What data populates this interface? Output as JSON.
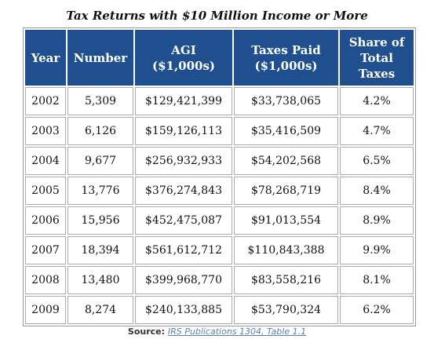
{
  "title": "Tax Returns with $10 Million Income or More",
  "table": {
    "header": [
      [
        "Year"
      ],
      [
        "Number"
      ],
      [
        "AGI",
        "($1,000s)"
      ],
      [
        "Taxes Paid",
        "($1,000s)"
      ],
      [
        "Share of",
        "Total",
        "Taxes"
      ]
    ],
    "rows": [
      [
        "2002",
        "5,309",
        "$129,421,399",
        "$33,738,065",
        "4.2%"
      ],
      [
        "2003",
        "6,126",
        "$159,126,113",
        "$35,416,509",
        "4.7%"
      ],
      [
        "2004",
        "9,677",
        "$256,932,933",
        "$54,202,568",
        "6.5%"
      ],
      [
        "2005",
        "13,776",
        "$376,274,843",
        "$78,268,719",
        "8.4%"
      ],
      [
        "2006",
        "15,956",
        "$452,475,087",
        "$91,013,554",
        "8.9%"
      ],
      [
        "2007",
        "18,394",
        "$561,612,712",
        "$110,843,388",
        "9.9%"
      ],
      [
        "2008",
        "13,480",
        "$399,968,770",
        "$83,558,216",
        "8.1%"
      ],
      [
        "2009",
        "8,274",
        "$240,133,885",
        "$53,790,324",
        "6.2%"
      ]
    ]
  },
  "source": {
    "label": "Source:",
    "link": "IRS Publications 1304, Table 1.1"
  }
}
